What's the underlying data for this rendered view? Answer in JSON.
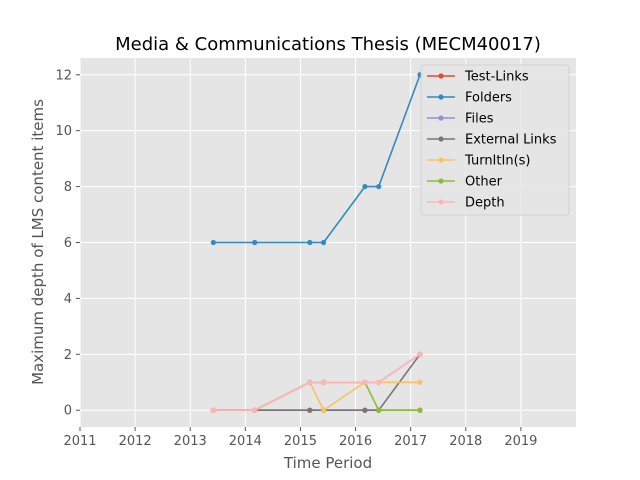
{
  "chart_data": {
    "type": "line",
    "title": "Media & Communications Thesis (MECM40017)",
    "xlabel": "Time Period",
    "ylabel": "Maximum depth of LMS content items",
    "xlim": [
      2011,
      2020
    ],
    "ylim": [
      -0.6,
      12.6
    ],
    "xticks": [
      "2011",
      "2012",
      "2013",
      "2014",
      "2015",
      "2016",
      "2017",
      "2018",
      "2019"
    ],
    "xtick_values": [
      2011,
      2012,
      2013,
      2014,
      2015,
      2016,
      2017,
      2018,
      2019
    ],
    "yticks": [
      "0",
      "2",
      "4",
      "6",
      "8",
      "10",
      "12"
    ],
    "ytick_values": [
      0,
      2,
      4,
      6,
      8,
      10,
      12
    ],
    "grid": true,
    "legend_position": "top-right",
    "x": [
      2013.42,
      2014.17,
      2015.17,
      2015.42,
      2016.17,
      2016.42,
      2017.17
    ],
    "series": [
      {
        "name": "Test-Links",
        "color": "#E24A33",
        "values": [
          0,
          0,
          0,
          0,
          0,
          0,
          0
        ]
      },
      {
        "name": "Folders",
        "color": "#348ABD",
        "values": [
          6,
          6,
          6,
          6,
          8,
          8,
          12
        ]
      },
      {
        "name": "Files",
        "color": "#988ED5",
        "values": [
          0,
          0,
          1,
          1,
          1,
          1,
          2
        ]
      },
      {
        "name": "External Links",
        "color": "#777777",
        "values": [
          0,
          0,
          0,
          0,
          0,
          0,
          2
        ]
      },
      {
        "name": "TurnItIn(s)",
        "color": "#FBC15E",
        "values": [
          0,
          0,
          1,
          0,
          1,
          1,
          1
        ]
      },
      {
        "name": "Other",
        "color": "#8EBA42",
        "values": [
          0,
          0,
          1,
          1,
          1,
          0,
          0
        ]
      },
      {
        "name": "Depth",
        "color": "#FFB5B8",
        "values": [
          0,
          0,
          1,
          1,
          1,
          1,
          2
        ]
      }
    ]
  }
}
